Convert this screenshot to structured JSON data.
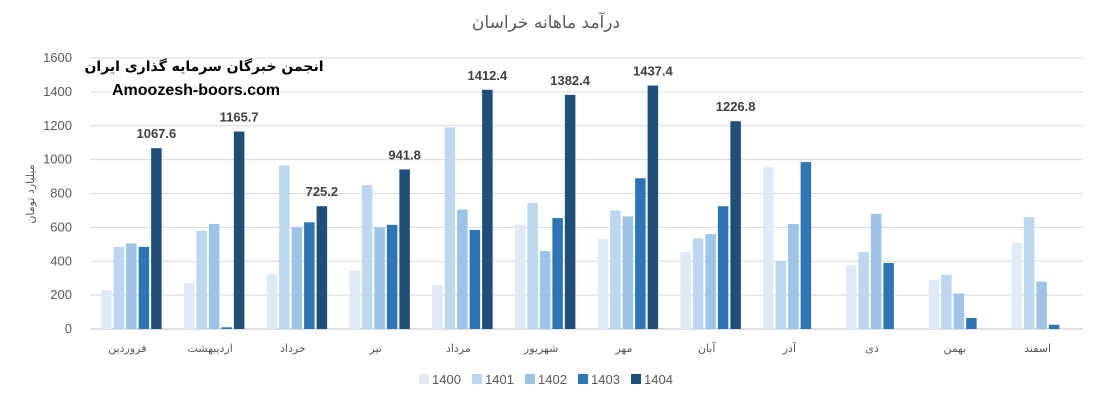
{
  "chart_data": {
    "type": "bar",
    "title": "درآمد ماهانه خراسان",
    "ylabel": "میلیارد تومان",
    "xlabel": "",
    "ylim": [
      0,
      1600
    ],
    "yticks": [
      "0",
      "200",
      "400",
      "600",
      "800",
      "1000",
      "1200",
      "1400",
      "1600"
    ],
    "grid": true,
    "legend_position": "bottom",
    "categories": [
      "فروردین",
      "اردیبهشت",
      "خرداد",
      "تیر",
      "مرداد",
      "شهریور",
      "مهر",
      "آبان",
      "آذر",
      "دی",
      "بهمن",
      "اسفند"
    ],
    "series": [
      {
        "name": "1400",
        "color": "#deebf7",
        "values": [
          230,
          270,
          325,
          345,
          260,
          615,
          530,
          455,
          955,
          375,
          290,
          510
        ]
      },
      {
        "name": "1401",
        "color": "#bdd7ee",
        "values": [
          485,
          580,
          965,
          850,
          1190,
          745,
          700,
          535,
          400,
          455,
          320,
          660
        ]
      },
      {
        "name": "1402",
        "color": "#9dc3e6",
        "values": [
          505,
          620,
          600,
          600,
          705,
          460,
          665,
          560,
          620,
          680,
          210,
          280
        ]
      },
      {
        "name": "1403",
        "color": "#2e75b6",
        "values": [
          485,
          10,
          630,
          615,
          585,
          655,
          890,
          725,
          985,
          390,
          65,
          25
        ]
      },
      {
        "name": "1404",
        "color": "#1f4e79",
        "values": [
          1067.6,
          1165.7,
          725.2,
          941.8,
          1412.4,
          1382.4,
          1437.4,
          1226.8,
          null,
          null,
          null,
          null
        ]
      }
    ],
    "data_labels": {
      "series": "1404",
      "texts": [
        "1067.6",
        "1165.7",
        "725.2",
        "941.8",
        "1412.4",
        "1382.4",
        "1437.4",
        "1226.8"
      ]
    }
  },
  "watermark": {
    "line1": "انجمن خبرگان سرمایه گذاری ایران",
    "line2": "Amoozesh-boors.com"
  },
  "colors": {
    "grid": "#d9d9d9",
    "axis": "#bfbfbf",
    "text": "#595959"
  }
}
